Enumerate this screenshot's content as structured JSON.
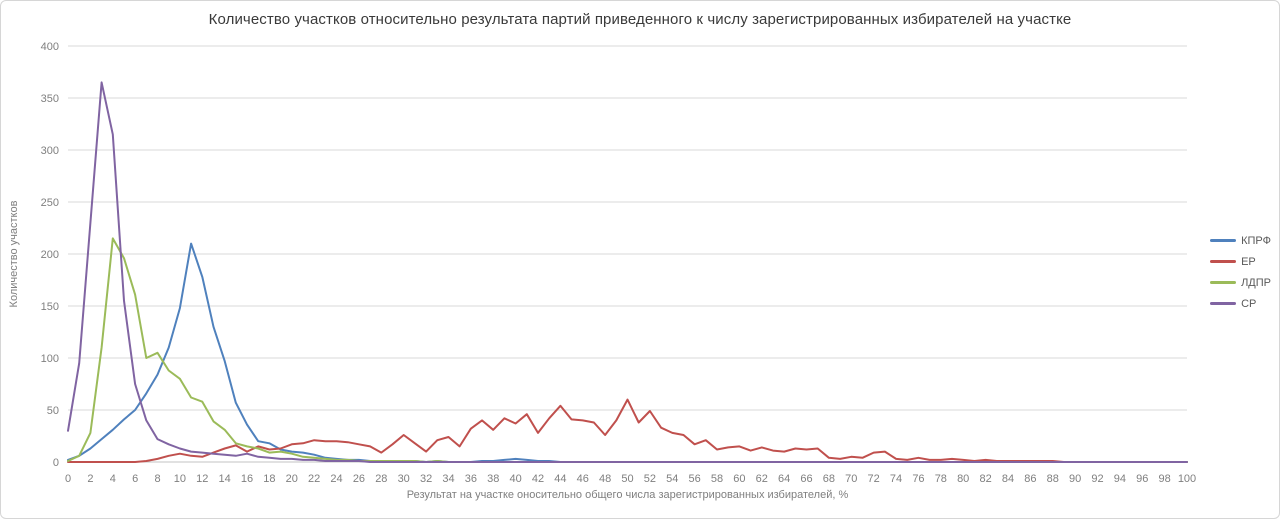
{
  "chart": {
    "title": "Количество участков относительно результата партий приведенного к числу зарегистрированных избирателей на участке",
    "xlabel": "Результат на участке оносительно общего числа зарегистрированных избирателей, %",
    "ylabel": "Количество участков"
  },
  "chart_data": {
    "type": "line",
    "title": "Количество участков относительно результата партий приведенного к числу зарегистрированных избирателей на участке",
    "xlabel": "Результат на участке оносительно общего числа зарегистрированных избирателей, %",
    "ylabel": "Количество участков",
    "xlim": [
      0,
      100
    ],
    "ylim": [
      0,
      400
    ],
    "x_min": 0,
    "x_step": 1,
    "x_ticks": [
      0,
      2,
      4,
      6,
      8,
      10,
      12,
      14,
      16,
      18,
      20,
      22,
      24,
      26,
      28,
      30,
      32,
      34,
      36,
      38,
      40,
      42,
      44,
      46,
      48,
      50,
      52,
      54,
      56,
      58,
      60,
      62,
      64,
      66,
      68,
      70,
      72,
      74,
      76,
      78,
      80,
      82,
      84,
      86,
      88,
      90,
      92,
      94,
      96,
      98,
      100
    ],
    "y_ticks": [
      0,
      50,
      100,
      150,
      200,
      250,
      300,
      350,
      400
    ],
    "grid": true,
    "legend_position": "right",
    "grid_color": "#d9d9d9",
    "axis_text_color": "#7f7f7f",
    "series": [
      {
        "name": "КПРФ",
        "color": "#4f81bd",
        "values": [
          2,
          6,
          13,
          22,
          31,
          41,
          50,
          66,
          84,
          110,
          148,
          210,
          178,
          130,
          97,
          57,
          36,
          20,
          18,
          12,
          10,
          9,
          7,
          4,
          3,
          2,
          2,
          1,
          1,
          1,
          1,
          1,
          0,
          1,
          0,
          0,
          0,
          1,
          1,
          2,
          3,
          2,
          1,
          1,
          0,
          0,
          0,
          0,
          0,
          0,
          0,
          0,
          0,
          0,
          0,
          0,
          0,
          0,
          0,
          0,
          0,
          0,
          0,
          0,
          0,
          0,
          0,
          0,
          0,
          0,
          0,
          0,
          0,
          0,
          0,
          0,
          0,
          0,
          0,
          0,
          0,
          0,
          0,
          0,
          0,
          0,
          0,
          0,
          0,
          0,
          0,
          0,
          0,
          0,
          0,
          0,
          0,
          0,
          0,
          0,
          0
        ]
      },
      {
        "name": "ЕР",
        "color": "#c0504d",
        "values": [
          0,
          0,
          0,
          0,
          0,
          0,
          0,
          1,
          3,
          6,
          8,
          6,
          5,
          9,
          13,
          16,
          10,
          15,
          12,
          13,
          17,
          18,
          21,
          20,
          20,
          19,
          17,
          15,
          9,
          17,
          26,
          18,
          10,
          21,
          24,
          15,
          32,
          40,
          31,
          42,
          37,
          46,
          28,
          42,
          54,
          41,
          40,
          38,
          26,
          40,
          60,
          38,
          49,
          33,
          28,
          26,
          17,
          21,
          12,
          14,
          15,
          11,
          14,
          11,
          10,
          13,
          12,
          13,
          4,
          3,
          5,
          4,
          9,
          10,
          3,
          2,
          4,
          2,
          2,
          3,
          2,
          1,
          2,
          1,
          1,
          1,
          1,
          1,
          1,
          0,
          0,
          0,
          0,
          0,
          0,
          0,
          0,
          0,
          0,
          0,
          0
        ]
      },
      {
        "name": "ЛДПР",
        "color": "#9bbb59",
        "values": [
          1,
          6,
          28,
          110,
          215,
          196,
          161,
          100,
          105,
          88,
          80,
          62,
          58,
          39,
          31,
          18,
          15,
          13,
          9,
          10,
          8,
          5,
          4,
          3,
          2,
          2,
          1,
          1,
          1,
          1,
          1,
          1,
          0,
          1,
          0,
          0,
          0,
          0,
          0,
          0,
          0,
          0,
          0,
          0,
          0,
          0,
          0,
          0,
          0,
          0,
          0,
          0,
          0,
          0,
          0,
          0,
          0,
          0,
          0,
          0,
          0,
          0,
          0,
          0,
          0,
          0,
          0,
          0,
          0,
          0,
          0,
          0,
          0,
          0,
          0,
          0,
          0,
          0,
          0,
          0,
          0,
          0,
          0,
          0,
          0,
          0,
          0,
          0,
          0,
          0,
          0,
          0,
          0,
          0,
          0,
          0,
          0,
          0,
          0,
          0,
          0
        ]
      },
      {
        "name": "СР",
        "color": "#8064a2",
        "values": [
          30,
          95,
          230,
          365,
          315,
          155,
          75,
          40,
          22,
          17,
          13,
          10,
          9,
          8,
          7,
          6,
          8,
          5,
          4,
          3,
          3,
          2,
          2,
          1,
          1,
          1,
          1,
          0,
          0,
          0,
          0,
          0,
          0,
          0,
          0,
          0,
          0,
          0,
          0,
          0,
          0,
          0,
          0,
          0,
          0,
          0,
          0,
          0,
          0,
          0,
          0,
          0,
          0,
          0,
          0,
          0,
          0,
          0,
          0,
          0,
          0,
          0,
          0,
          0,
          0,
          0,
          0,
          0,
          0,
          0,
          0,
          0,
          0,
          0,
          0,
          0,
          0,
          0,
          0,
          0,
          0,
          0,
          0,
          0,
          0,
          0,
          0,
          0,
          0,
          0,
          0,
          0,
          0,
          0,
          0,
          0,
          0,
          0,
          0,
          0,
          0
        ]
      }
    ]
  },
  "legend": {
    "items": [
      {
        "label": "КПРФ",
        "color": "#4f81bd"
      },
      {
        "label": "ЕР",
        "color": "#c0504d"
      },
      {
        "label": "ЛДПР",
        "color": "#9bbb59"
      },
      {
        "label": "СР",
        "color": "#8064a2"
      }
    ]
  }
}
